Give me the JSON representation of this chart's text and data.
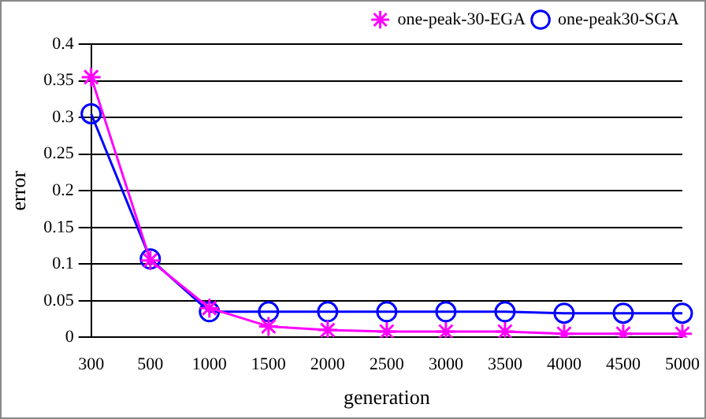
{
  "chart_data": {
    "type": "line",
    "xlabel": "generation",
    "ylabel": "error",
    "categories": [
      "300",
      "500",
      "1000",
      "1500",
      "2000",
      "2500",
      "3000",
      "3500",
      "4000",
      "4500",
      "5000"
    ],
    "series": [
      {
        "name": "one-peak-30-EGA",
        "color": "#ff00ff",
        "marker": "cross",
        "values": [
          0.355,
          0.105,
          0.04,
          0.015,
          0.01,
          0.008,
          0.008,
          0.008,
          0.005,
          0.005,
          0.005
        ]
      },
      {
        "name": "one-peak30-SGA",
        "color": "#0000ff",
        "marker": "circle",
        "values": [
          0.305,
          0.107,
          0.035,
          0.035,
          0.035,
          0.035,
          0.035,
          0.035,
          0.033,
          0.033,
          0.033
        ]
      }
    ],
    "ylim": [
      0,
      0.4
    ],
    "yticks": [
      0,
      0.05,
      0.1,
      0.15,
      0.2,
      0.25,
      0.3,
      0.35,
      0.4
    ],
    "grid": "y",
    "legend": "top right"
  }
}
